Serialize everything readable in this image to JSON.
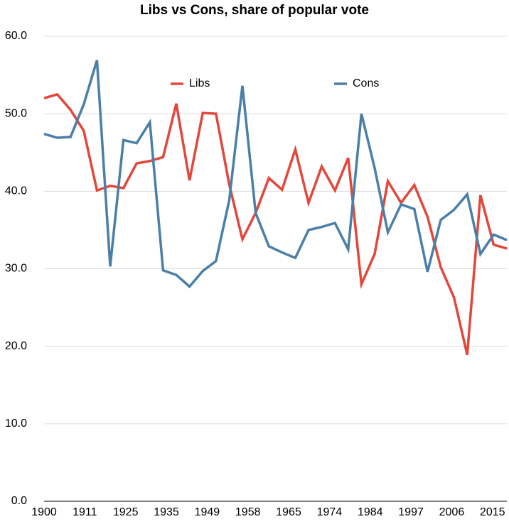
{
  "chart_data": {
    "type": "line",
    "title": "Libs vs Cons, share of popular vote",
    "categories": [
      "1900",
      null,
      null,
      "1911",
      null,
      null,
      "1925",
      null,
      null,
      "1935",
      null,
      null,
      "1949",
      null,
      null,
      "1958",
      null,
      null,
      "1965",
      null,
      null,
      "1974",
      null,
      null,
      "1984",
      null,
      null,
      "1997",
      null,
      null,
      "2006",
      null,
      null,
      "2015",
      null,
      null
    ],
    "series": [
      {
        "name": "Libs",
        "color": "#e2473b",
        "values": [
          52.0,
          52.5,
          50.5,
          47.8,
          40.1,
          40.7,
          40.4,
          43.6,
          43.9,
          44.4,
          51.3,
          41.4,
          50.1,
          50.0,
          40.9,
          33.8,
          37.2,
          41.7,
          40.2,
          45.4,
          38.5,
          43.2,
          40.1,
          44.3,
          28.0,
          31.9,
          41.3,
          38.5,
          40.8,
          36.7,
          30.2,
          26.3,
          18.9,
          39.5,
          33.1,
          32.6
        ]
      },
      {
        "name": "Cons",
        "color": "#4a7fa8",
        "values": [
          47.4,
          46.9,
          47.0,
          51.2,
          56.9,
          30.3,
          46.6,
          46.2,
          48.9,
          29.8,
          29.2,
          27.7,
          29.7,
          31.0,
          38.8,
          53.6,
          37.2,
          32.9,
          32.1,
          31.4,
          35.0,
          35.4,
          35.9,
          32.5,
          50.0,
          43.0,
          34.7,
          38.3,
          37.7,
          29.6,
          36.3,
          37.6,
          39.6,
          31.9,
          34.4,
          33.7
        ]
      }
    ],
    "ylim": [
      0,
      60
    ],
    "yticks": [
      {
        "value": 0,
        "label": "0.0"
      },
      {
        "value": 10,
        "label": "10.0"
      },
      {
        "value": 20,
        "label": "20.0"
      },
      {
        "value": 30,
        "label": "30.0"
      },
      {
        "value": 40,
        "label": "40.0"
      },
      {
        "value": 50,
        "label": "50.0"
      },
      {
        "value": 60,
        "label": "60.0"
      }
    ],
    "grid": true,
    "legend": "top"
  }
}
